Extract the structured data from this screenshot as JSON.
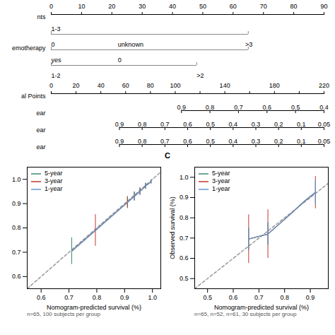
{
  "chart_data": [
    {
      "type": "nomogram",
      "rows": [
        {
          "type": "axis",
          "label": "nts",
          "xlim": [
            0,
            90
          ],
          "xticks": [
            0,
            10,
            20,
            30,
            40,
            50,
            60,
            70,
            80,
            90
          ]
        },
        {
          "type": "bar",
          "color": "#888888",
          "segment": [
            0,
            65
          ],
          "labels": [
            {
              "value": 0,
              "label": "1-3"
            }
          ]
        },
        {
          "type": "bar",
          "label": "emotherapy",
          "color": "#888888",
          "segment": [
            0,
            65
          ],
          "labels": [
            {
              "value": 0,
              "label": "0"
            },
            {
              "value": 22,
              "label": "unknown"
            },
            {
              "value": 64,
              "label": ">3"
            }
          ]
        },
        {
          "type": "bar",
          "color": "#888888",
          "segment": [
            0,
            48
          ],
          "labels": [
            {
              "value": 0,
              "label": "yes"
            },
            {
              "value": 22,
              "label": "0"
            }
          ]
        },
        {
          "type": "labels",
          "labels": [
            {
              "value": 0,
              "label": "1-2"
            },
            {
              "value": 48,
              "label": ">2"
            }
          ]
        },
        {
          "type": "axis",
          "label": "al Points",
          "xlim": [
            0,
            220
          ],
          "xticks": [
            0,
            20,
            40,
            60,
            80,
            100,
            {
              "value": 120,
              "label": null
            },
            140,
            {
              "value": 160,
              "label": null
            },
            180,
            {
              "value": 200,
              "label": null
            },
            220
          ]
        },
        {
          "type": "scale",
          "label": "ear",
          "span": [
            105,
            220
          ],
          "ticks": [
            0.9,
            0.8,
            0.7,
            0.6,
            0.5,
            0.4
          ]
        },
        {
          "type": "scale",
          "label": "ear",
          "span": [
            55,
            220
          ],
          "ticks": [
            0.9,
            0.8,
            0.7,
            0.6,
            0.5,
            0.4,
            0.3,
            0.2,
            0.1,
            0.05
          ]
        },
        {
          "type": "scale",
          "label": "ear",
          "span": [
            55,
            220
          ],
          "ticks": [
            0.9,
            0.8,
            0.7,
            0.6,
            0.5,
            0.4,
            0.3,
            0.2,
            0.1,
            0.05
          ]
        }
      ]
    },
    {
      "type": "line",
      "xlabel": "Nomogram-predicted survival (%)",
      "xlim": [
        0.55,
        1.03
      ],
      "ylim": [
        0.55,
        1.05
      ],
      "xticks": [
        0.6,
        0.7,
        0.8,
        0.9,
        {
          "value": 1.0,
          "label": "1.0"
        }
      ],
      "yticks": [
        0.6,
        0.7,
        0.8,
        0.9,
        {
          "value": 1.0,
          "label": "1.0"
        }
      ],
      "legend": "upper left",
      "annotation": "n=65, 100 subjects per group",
      "series": [
        {
          "name": "5-year",
          "color": "#3c8c6e",
          "x": [
            0.71,
            0.795,
            0.91,
            0.935,
            0.955,
            0.975,
            0.995
          ],
          "values": [
            0.705,
            0.79,
            0.905,
            0.93,
            0.95,
            0.972,
            0.99
          ],
          "error_x": [
            0.71,
            0.91,
            0.935,
            0.955,
            0.975,
            0.995
          ],
          "error_y": [
            0.705,
            0.905,
            0.93,
            0.95,
            0.972,
            0.99
          ],
          "error_lo": [
            0.055,
            0.025,
            0.018,
            0.015,
            0.012,
            0.008
          ],
          "error_hi": [
            0.055,
            0.025,
            0.018,
            0.015,
            0.012,
            0.008
          ]
        },
        {
          "name": "3-year",
          "color": "#c0392b",
          "x": [
            0.71,
            0.795,
            0.91,
            0.935,
            0.955,
            0.975,
            0.995
          ],
          "values": [
            0.705,
            0.79,
            0.905,
            0.93,
            0.95,
            0.972,
            0.99
          ],
          "error_x": [
            0.795,
            0.91,
            0.935,
            0.955,
            0.975,
            0.995
          ],
          "error_y": [
            0.79,
            0.905,
            0.93,
            0.95,
            0.972,
            0.99
          ],
          "error_lo": [
            0.065,
            0.022,
            0.018,
            0.015,
            0.012,
            0.008
          ],
          "error_hi": [
            0.065,
            0.022,
            0.018,
            0.015,
            0.012,
            0.008
          ]
        },
        {
          "name": "1-year",
          "color": "#5b9bd5",
          "x": [
            0.71,
            0.795,
            0.91,
            0.935,
            0.955,
            0.975,
            0.995
          ],
          "values": [
            0.705,
            0.79,
            0.905,
            0.93,
            0.95,
            0.972,
            0.99
          ],
          "error_x": [
            0.935,
            0.955,
            0.975,
            0.995
          ],
          "error_y": [
            0.93,
            0.95,
            0.972,
            0.99
          ],
          "error_lo": [
            0.018,
            0.015,
            0.012,
            0.008
          ],
          "error_hi": [
            0.018,
            0.015,
            0.012,
            0.008
          ]
        }
      ]
    },
    {
      "type": "line",
      "title": "C",
      "xlabel": "Nomogram-predicted survival (%)",
      "ylabel": "Observed survival (%)",
      "xlim": [
        0.45,
        0.97
      ],
      "ylim": [
        0.45,
        1.05
      ],
      "xticks": [
        0.5,
        0.6,
        0.7,
        0.8,
        0.9
      ],
      "yticks": [
        0.5,
        0.6,
        0.7,
        0.8,
        0.9,
        {
          "value": 1.0,
          "label": "1.0"
        }
      ],
      "legend": "upper left",
      "annotation": "n=65, n=52, n=61, 30 subjects per group",
      "series": [
        {
          "name": "5-year",
          "color": "#3c8c6e",
          "x": [
            0.66,
            0.735,
            0.82,
            0.88,
            0.92
          ],
          "values": [
            0.695,
            0.72,
            0.815,
            0.885,
            0.925
          ],
          "error_x": [
            0.66,
            0.735,
            0.92
          ],
          "error_y": [
            0.695,
            0.72,
            0.925
          ],
          "error_lo": [
            0.055,
            0.055,
            0.06
          ],
          "error_hi": [
            0.055,
            0.055,
            0.06
          ]
        },
        {
          "name": "3-year",
          "color": "#c0392b",
          "x": [
            0.66,
            0.735,
            0.82,
            0.88,
            0.92
          ],
          "values": [
            0.695,
            0.72,
            0.815,
            0.885,
            0.925
          ],
          "error_x": [
            0.66,
            0.735,
            0.92
          ],
          "error_y": [
            0.695,
            0.72,
            0.925
          ],
          "error_lo": [
            0.12,
            0.12,
            0.08
          ],
          "error_hi": [
            0.12,
            0.12,
            0.08
          ]
        },
        {
          "name": "1-year",
          "color": "#5b9bd5",
          "x": [
            0.66,
            0.735,
            0.82,
            0.88,
            0.92
          ],
          "values": [
            0.695,
            0.72,
            0.815,
            0.885,
            0.925
          ],
          "error_x": [
            0.66,
            0.735,
            0.92
          ],
          "error_y": [
            0.695,
            0.72,
            0.925
          ],
          "error_lo": [
            0.055,
            0.055,
            0.06
          ],
          "error_hi": [
            0.055,
            0.055,
            0.06
          ]
        }
      ]
    }
  ]
}
